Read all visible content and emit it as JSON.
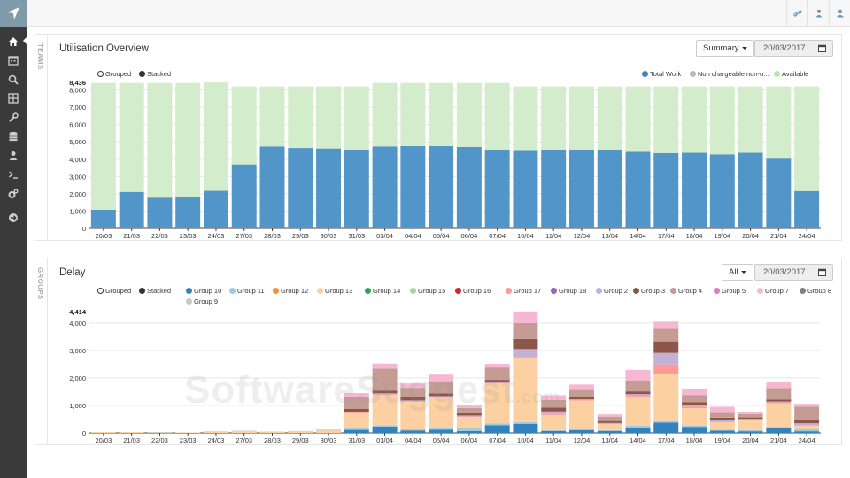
{
  "colors": {
    "total_work": "#5295c9",
    "available": "#d3eccb"
  },
  "icons": {
    "sidebar": [
      "home-icon",
      "calendar-icon",
      "search-icon",
      "grid-icon",
      "wrench-icon",
      "database-icon",
      "user-icon",
      "terminal-icon",
      "cogs-icon",
      "arrow-circle-right-icon"
    ],
    "topbar": [
      "link-icon",
      "user-lock-icon",
      "user-icon"
    ]
  },
  "utilisation": {
    "side_label": "TEAMS",
    "title": "Utilisation Overview",
    "mode": "Summary",
    "date": "20/03/2017",
    "chart_controls": {
      "grouped": "Grouped",
      "stacked": "Stacked"
    },
    "legend": [
      {
        "label": "Total Work",
        "color": "#5295c9"
      },
      {
        "label": "Non chargeable non-u...",
        "color": "#b9b9b9"
      },
      {
        "label": "Available",
        "color": "#b9e6a9"
      }
    ]
  },
  "delay": {
    "side_label": "GROUPS",
    "title": "Delay",
    "mode": "All",
    "date": "20/03/2017",
    "chart_controls": {
      "grouped": "Grouped",
      "stacked": "Stacked"
    }
  },
  "watermark": {
    "text": "SoftwareSuggest",
    "suffix": ".com"
  },
  "chart_data": [
    {
      "type": "bar",
      "stacked": true,
      "categories": [
        "20/03",
        "21/03",
        "22/03",
        "23/03",
        "24/03",
        "27/03",
        "28/03",
        "29/03",
        "30/03",
        "31/03",
        "03/04",
        "04/04",
        "05/04",
        "06/04",
        "07/04",
        "10/04",
        "11/04",
        "12/04",
        "13/04",
        "14/04",
        "17/04",
        "18/04",
        "19/04",
        "20/04",
        "21/04",
        "24/04"
      ],
      "ylim": [
        0,
        8436
      ],
      "y_max_label": "8,436",
      "y_ticks": [
        "0",
        "1,000",
        "2,000",
        "3,000",
        "4,000",
        "5,000",
        "6,000",
        "7,000",
        "8,000"
      ],
      "grid": true,
      "legend_position": "top-right",
      "series": [
        {
          "name": "Total Work",
          "color": "#5295c9",
          "values": [
            1080,
            2110,
            1780,
            1810,
            2170,
            3700,
            4740,
            4650,
            4620,
            4520,
            4740,
            4760,
            4760,
            4710,
            4500,
            4480,
            4550,
            4550,
            4520,
            4430,
            4350,
            4370,
            4280,
            4370,
            4030,
            2160
          ]
        },
        {
          "name": "Non chargeable non-u...",
          "color": "#b9b9b9",
          "values": [
            0,
            0,
            0,
            0,
            0,
            0,
            0,
            0,
            0,
            0,
            0,
            0,
            0,
            0,
            0,
            0,
            0,
            0,
            0,
            0,
            0,
            0,
            0,
            0,
            0,
            0
          ]
        },
        {
          "name": "Available",
          "color": "#d3eccb",
          "values": [
            7320,
            6290,
            6620,
            6590,
            6260,
            4500,
            3460,
            3550,
            3580,
            3680,
            3660,
            3640,
            3640,
            3690,
            3900,
            3720,
            3650,
            3650,
            3680,
            3770,
            3850,
            3830,
            3920,
            3830,
            4170,
            6040
          ]
        }
      ]
    },
    {
      "type": "bar",
      "stacked": true,
      "categories": [
        "20/03",
        "21/03",
        "22/03",
        "23/03",
        "24/03",
        "27/03",
        "28/03",
        "29/03",
        "30/03",
        "31/03",
        "03/04",
        "04/04",
        "05/04",
        "06/04",
        "07/04",
        "10/04",
        "11/04",
        "12/04",
        "13/04",
        "14/04",
        "17/04",
        "18/04",
        "19/04",
        "20/04",
        "21/04",
        "24/04"
      ],
      "ylim": [
        0,
        4414
      ],
      "y_max_label": "4,414",
      "y_ticks": [
        "0",
        "1,000",
        "2,000",
        "3,000",
        "4,000"
      ],
      "grid": true,
      "legend_position": "top",
      "series": [
        {
          "name": "Group 10",
          "color": "#3182bd",
          "values": [
            0,
            0,
            0,
            0,
            0,
            0,
            0,
            0,
            0,
            110,
            230,
            90,
            120,
            70,
            280,
            330,
            70,
            100,
            70,
            200,
            370,
            220,
            80,
            60,
            180,
            60
          ]
        },
        {
          "name": "Group 11",
          "color": "#9ecae1",
          "values": [
            0,
            0,
            0,
            0,
            0,
            0,
            0,
            0,
            0,
            50,
            50,
            40,
            40,
            90,
            60,
            60,
            30,
            40,
            30,
            60,
            60,
            50,
            30,
            40,
            40,
            80
          ]
        },
        {
          "name": "Group 12",
          "color": "#fd8d3c",
          "values": [
            0,
            0,
            0,
            0,
            0,
            0,
            0,
            0,
            0,
            0,
            0,
            0,
            0,
            0,
            0,
            0,
            0,
            0,
            0,
            0,
            0,
            0,
            0,
            0,
            0,
            0
          ]
        },
        {
          "name": "Group 13",
          "color": "#fdd0a2",
          "values": [
            30,
            30,
            10,
            20,
            60,
            60,
            40,
            60,
            90,
            560,
            1100,
            1000,
            1130,
            420,
            1460,
            2320,
            550,
            1030,
            220,
            1030,
            1730,
            630,
            280,
            350,
            860,
            120
          ]
        },
        {
          "name": "Group 14",
          "color": "#31a354",
          "values": [
            0,
            0,
            0,
            0,
            0,
            0,
            0,
            0,
            0,
            0,
            0,
            0,
            0,
            0,
            0,
            0,
            0,
            0,
            0,
            0,
            0,
            0,
            0,
            0,
            0,
            0
          ]
        },
        {
          "name": "Group 15",
          "color": "#a1d99b",
          "values": [
            0,
            0,
            0,
            0,
            0,
            0,
            0,
            0,
            0,
            0,
            0,
            0,
            0,
            0,
            0,
            0,
            0,
            0,
            0,
            0,
            0,
            0,
            0,
            0,
            0,
            0
          ]
        },
        {
          "name": "Group 16",
          "color": "#d62728",
          "values": [
            0,
            0,
            0,
            0,
            0,
            0,
            0,
            0,
            0,
            0,
            0,
            0,
            0,
            0,
            0,
            0,
            0,
            0,
            0,
            0,
            0,
            0,
            0,
            0,
            0,
            0
          ]
        },
        {
          "name": "Group 17",
          "color": "#ff9896",
          "values": [
            0,
            0,
            0,
            0,
            0,
            0,
            0,
            0,
            0,
            30,
            20,
            20,
            20,
            20,
            20,
            40,
            30,
            20,
            20,
            60,
            330,
            60,
            30,
            30,
            30,
            20
          ]
        },
        {
          "name": "Group 18",
          "color": "#9467bd",
          "values": [
            0,
            0,
            0,
            0,
            0,
            0,
            0,
            0,
            0,
            0,
            0,
            0,
            0,
            0,
            0,
            0,
            0,
            0,
            0,
            0,
            0,
            0,
            0,
            0,
            0,
            0
          ]
        },
        {
          "name": "Group 2",
          "color": "#c5b0d5",
          "values": [
            0,
            0,
            0,
            0,
            0,
            0,
            0,
            0,
            0,
            20,
            40,
            30,
            30,
            30,
            30,
            300,
            100,
            30,
            20,
            60,
            420,
            70,
            60,
            30,
            30,
            70
          ]
        },
        {
          "name": "Group 3",
          "color": "#8c564b",
          "values": [
            0,
            0,
            0,
            0,
            0,
            0,
            0,
            0,
            0,
            110,
            100,
            110,
            100,
            80,
            80,
            370,
            140,
            90,
            70,
            100,
            420,
            90,
            70,
            50,
            70,
            130
          ]
        },
        {
          "name": "Group 4",
          "color": "#c49c94",
          "values": [
            0,
            0,
            0,
            0,
            0,
            0,
            0,
            0,
            0,
            420,
            800,
            350,
            440,
            200,
            450,
            580,
            280,
            250,
            160,
            400,
            460,
            260,
            180,
            120,
            420,
            480
          ]
        },
        {
          "name": "Group 5",
          "color": "#e377c2",
          "values": [
            0,
            0,
            0,
            0,
            0,
            0,
            0,
            0,
            0,
            0,
            0,
            0,
            0,
            0,
            0,
            0,
            0,
            0,
            0,
            0,
            0,
            0,
            0,
            0,
            0,
            0
          ]
        },
        {
          "name": "Group 7",
          "color": "#f7b6d2",
          "values": [
            0,
            0,
            0,
            0,
            0,
            0,
            0,
            0,
            0,
            150,
            180,
            160,
            240,
            110,
            130,
            420,
            170,
            200,
            80,
            380,
            260,
            220,
            220,
            90,
            220,
            100
          ]
        },
        {
          "name": "Group 8",
          "color": "#7f7f7f",
          "values": [
            0,
            0,
            0,
            0,
            0,
            0,
            0,
            0,
            0,
            0,
            0,
            0,
            0,
            0,
            0,
            0,
            0,
            0,
            0,
            0,
            0,
            0,
            0,
            0,
            0,
            0
          ]
        },
        {
          "name": "Group 9",
          "color": "#c7c7c7",
          "values": [
            0,
            0,
            0,
            0,
            0,
            20,
            10,
            10,
            30,
            0,
            0,
            0,
            0,
            0,
            0,
            0,
            0,
            0,
            0,
            0,
            0,
            0,
            0,
            0,
            0,
            0
          ]
        }
      ]
    }
  ]
}
